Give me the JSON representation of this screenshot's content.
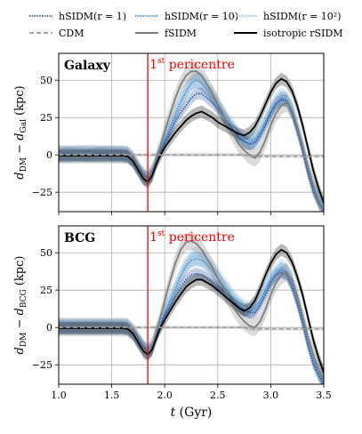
{
  "legend": {
    "placement": "top",
    "entries": [
      {
        "id": "hsidm1",
        "label": "hSIDM(r = 1)",
        "color": "#1f4e9c",
        "style": "dotted"
      },
      {
        "id": "hsidm10",
        "label": "hSIDM(r = 10)",
        "color": "#3f86c6",
        "style": "dotted"
      },
      {
        "id": "hsidm100",
        "label": "hSIDM(r = 10²)",
        "color": "#8fc1e3",
        "style": "dotted"
      },
      {
        "id": "cdm",
        "label": "CDM",
        "color": "#9a9a9a",
        "style": "dashed"
      },
      {
        "id": "fsidm",
        "label": "fSIDM",
        "color": "#7d7d7d",
        "style": "solid"
      },
      {
        "id": "rsidm",
        "label": "isotropic rSIDM",
        "color": "#000000",
        "style": "solid"
      }
    ]
  },
  "chart_data": [
    {
      "type": "line",
      "panel_title": "Galaxy",
      "annotation": {
        "text": "1st pericentre",
        "x": 1.84,
        "color": "#ff0000"
      },
      "ylabel": "d_DM − d_Gal (kpc)",
      "xlabel": "",
      "xlim": [
        1.0,
        3.5
      ],
      "ylim": [
        -38,
        68
      ],
      "xticks": [
        1.0,
        1.5,
        2.0,
        2.5,
        3.0,
        3.5
      ],
      "yticks": [
        -25,
        0,
        25,
        50
      ],
      "grid": true,
      "x": [
        1.0,
        1.1,
        1.2,
        1.3,
        1.4,
        1.5,
        1.6,
        1.65,
        1.7,
        1.75,
        1.8,
        1.84,
        1.88,
        1.92,
        1.96,
        2.0,
        2.05,
        2.1,
        2.15,
        2.2,
        2.25,
        2.3,
        2.35,
        2.4,
        2.45,
        2.5,
        2.55,
        2.6,
        2.65,
        2.7,
        2.75,
        2.8,
        2.85,
        2.9,
        2.95,
        3.0,
        3.05,
        3.1,
        3.15,
        3.2,
        3.25,
        3.3,
        3.35,
        3.4,
        3.45,
        3.5
      ],
      "series": [
        {
          "name": "CDM",
          "values": [
            0,
            0,
            0,
            0,
            0,
            0,
            0,
            0,
            0,
            0,
            0,
            0,
            0,
            0,
            0,
            0,
            0,
            0,
            0,
            0,
            0,
            0,
            0,
            0,
            0,
            0,
            0,
            0,
            0,
            0,
            0,
            -1,
            -1,
            -1,
            -1,
            -1,
            -1,
            -1,
            -1,
            -1,
            -1,
            -1,
            -1,
            -1,
            -1,
            -1
          ]
        },
        {
          "name": "hSIDM(r = 1)",
          "values": [
            0.5,
            0.8,
            0.3,
            0.6,
            1.0,
            0.5,
            0.4,
            0,
            -3,
            -9,
            -14,
            -16,
            -13,
            -5,
            2,
            9,
            15,
            22,
            28,
            33,
            38,
            41,
            41,
            38,
            35,
            31,
            26,
            21,
            16,
            12,
            9,
            7,
            8,
            13,
            20,
            28,
            34,
            37,
            36,
            28,
            16,
            3,
            -12,
            -24,
            -32,
            -38
          ]
        },
        {
          "name": "hSIDM(r = 10)",
          "values": [
            0.2,
            0.5,
            0.8,
            0.2,
            0.5,
            0.8,
            0.3,
            0,
            -4,
            -10,
            -15,
            -16,
            -12,
            -4,
            3,
            10,
            18,
            27,
            35,
            42,
            48,
            50,
            48,
            44,
            39,
            33,
            27,
            22,
            17,
            12,
            9,
            8,
            10,
            15,
            22,
            29,
            35,
            38,
            37,
            30,
            18,
            5,
            -10,
            -22,
            -30,
            -36
          ]
        },
        {
          "name": "hSIDM(r = 10²)",
          "values": [
            0.8,
            0.3,
            0.6,
            1.0,
            0.3,
            0.6,
            0.5,
            0,
            -3,
            -9,
            -14,
            -15,
            -12,
            -4,
            3,
            11,
            19,
            28,
            36,
            43,
            49,
            51,
            49,
            45,
            40,
            34,
            28,
            23,
            18,
            13,
            10,
            9,
            11,
            16,
            23,
            30,
            36,
            39,
            38,
            31,
            20,
            7,
            -8,
            -20,
            -29,
            -35
          ]
        },
        {
          "name": "fSIDM",
          "values": [
            0.2,
            0.2,
            0.3,
            0.2,
            0.3,
            0.2,
            0.2,
            0,
            -3,
            -9,
            -15,
            -17,
            -13,
            -3,
            6,
            16,
            27,
            38,
            47,
            53,
            56,
            56,
            53,
            47,
            41,
            34,
            27,
            20,
            13,
            7,
            3,
            0,
            -2,
            2,
            10,
            20,
            28,
            33,
            35,
            30,
            19,
            6,
            -8,
            -20,
            -30,
            -38
          ]
        },
        {
          "name": "isotropic rSIDM",
          "values": [
            -0.5,
            -0.5,
            -0.5,
            -0.5,
            -0.5,
            -0.5,
            -0.5,
            -1,
            -4,
            -10,
            -16,
            -18,
            -14,
            -6,
            0,
            5,
            10,
            15,
            19,
            23,
            26,
            28,
            29,
            27,
            25,
            22,
            20,
            18,
            16,
            14,
            13,
            15,
            19,
            26,
            34,
            42,
            48,
            51,
            49,
            43,
            33,
            20,
            5,
            -10,
            -22,
            -32
          ]
        }
      ]
    },
    {
      "type": "line",
      "panel_title": "BCG",
      "annotation": {
        "text": "1st pericentre",
        "x": 1.84,
        "color": "#ff0000"
      },
      "ylabel": "d_DM − d_BCG (kpc)",
      "xlabel": "t (Gyr)",
      "xlim": [
        1.0,
        3.5
      ],
      "ylim": [
        -38,
        68
      ],
      "xticks": [
        1.0,
        1.5,
        2.0,
        2.5,
        3.0,
        3.5
      ],
      "yticks": [
        -25,
        0,
        25,
        50
      ],
      "grid": true,
      "x": [
        1.0,
        1.1,
        1.2,
        1.3,
        1.4,
        1.5,
        1.6,
        1.65,
        1.7,
        1.75,
        1.8,
        1.84,
        1.88,
        1.92,
        1.96,
        2.0,
        2.05,
        2.1,
        2.15,
        2.2,
        2.25,
        2.3,
        2.35,
        2.4,
        2.45,
        2.5,
        2.55,
        2.6,
        2.65,
        2.7,
        2.75,
        2.8,
        2.85,
        2.9,
        2.95,
        3.0,
        3.05,
        3.1,
        3.15,
        3.2,
        3.25,
        3.3,
        3.35,
        3.4,
        3.45,
        3.5
      ],
      "series": [
        {
          "name": "CDM",
          "values": [
            0,
            0,
            0,
            0,
            0,
            0,
            0,
            0,
            0,
            0,
            0,
            0,
            0,
            0,
            0,
            0,
            0,
            0,
            0,
            0,
            0,
            0,
            0,
            0,
            0,
            0,
            0,
            0,
            0,
            0,
            0,
            -1,
            -1,
            -1,
            -1,
            -1,
            -1,
            -1,
            -1,
            -1,
            -1,
            -1,
            -1,
            -1,
            -1,
            -1
          ]
        },
        {
          "name": "hSIDM(r = 1)",
          "values": [
            0.5,
            0.5,
            0.5,
            0.5,
            0.5,
            0.5,
            0.5,
            0,
            -3,
            -8,
            -13,
            -16,
            -14,
            -6,
            1,
            8,
            14,
            21,
            27,
            32,
            35,
            36,
            35,
            33,
            30,
            27,
            24,
            21,
            17,
            14,
            12,
            10,
            10,
            15,
            22,
            30,
            35,
            37,
            35,
            27,
            16,
            3,
            -12,
            -24,
            -32,
            -38
          ]
        },
        {
          "name": "hSIDM(r = 10)",
          "values": [
            0.3,
            0.3,
            0.3,
            0.3,
            0.3,
            0.3,
            0.3,
            0,
            -4,
            -9,
            -14,
            -17,
            -14,
            -5,
            2,
            10,
            18,
            26,
            34,
            41,
            45,
            46,
            45,
            42,
            38,
            33,
            28,
            24,
            19,
            15,
            12,
            11,
            13,
            18,
            25,
            32,
            36,
            39,
            37,
            30,
            18,
            4,
            -10,
            -22,
            -30,
            -36
          ]
        },
        {
          "name": "hSIDM(r = 10²)",
          "values": [
            0.6,
            0.6,
            0.6,
            0.6,
            0.6,
            0.6,
            0.6,
            0,
            -3,
            -8,
            -13,
            -15,
            -12,
            -4,
            3,
            11,
            19,
            27,
            35,
            42,
            47,
            48,
            47,
            44,
            40,
            35,
            30,
            25,
            20,
            16,
            13,
            12,
            14,
            19,
            26,
            33,
            37,
            40,
            38,
            31,
            20,
            6,
            -8,
            -20,
            -29,
            -35
          ]
        },
        {
          "name": "fSIDM",
          "values": [
            0.2,
            0.2,
            0.2,
            0.2,
            0.2,
            0.2,
            0.2,
            0,
            -3,
            -9,
            -15,
            -17,
            -13,
            -3,
            7,
            18,
            31,
            43,
            52,
            57,
            58,
            56,
            52,
            46,
            40,
            33,
            27,
            20,
            13,
            8,
            4,
            1,
            0,
            4,
            12,
            22,
            30,
            35,
            37,
            32,
            21,
            8,
            -6,
            -18,
            -28,
            -35
          ]
        },
        {
          "name": "isotropic rSIDM",
          "values": [
            -0.5,
            -0.5,
            -0.5,
            -0.5,
            -0.5,
            -0.5,
            -0.5,
            -1,
            -4,
            -10,
            -16,
            -18,
            -15,
            -7,
            0,
            5,
            11,
            17,
            22,
            27,
            30,
            32,
            32,
            30,
            28,
            25,
            22,
            19,
            16,
            13,
            11,
            13,
            18,
            26,
            35,
            43,
            49,
            52,
            50,
            44,
            34,
            22,
            7,
            -8,
            -20,
            -30
          ]
        }
      ]
    }
  ]
}
